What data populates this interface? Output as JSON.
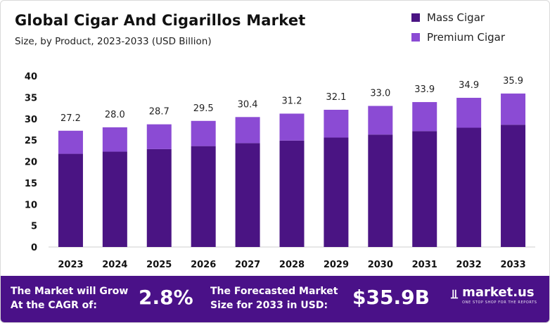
{
  "header": {
    "title": "Global Cigar And Cigarillos Market",
    "subtitle": "Size, by Product, 2023-2033 (USD Billion)"
  },
  "legend": [
    {
      "label": "Mass Cigar",
      "color": "#4a1483"
    },
    {
      "label": "Premium Cigar",
      "color": "#8b4bd4"
    }
  ],
  "chart_data": {
    "type": "bar",
    "stacked": true,
    "title": "Global Cigar And Cigarillos Market",
    "subtitle": "Size, by Product, 2023-2033 (USD Billion)",
    "categories": [
      "2023",
      "2024",
      "2025",
      "2026",
      "2027",
      "2028",
      "2029",
      "2030",
      "2031",
      "2032",
      "2033"
    ],
    "series": [
      {
        "name": "Mass Cigar",
        "color": "#4a1483",
        "values": [
          21.8,
          22.3,
          22.9,
          23.6,
          24.3,
          24.9,
          25.6,
          26.3,
          27.1,
          27.9,
          28.6
        ]
      },
      {
        "name": "Premium Cigar",
        "color": "#8b4bd4",
        "values": [
          5.4,
          5.7,
          5.8,
          5.9,
          6.1,
          6.3,
          6.5,
          6.7,
          6.8,
          7.0,
          7.3
        ]
      }
    ],
    "totals": [
      "27.2",
      "28.0",
      "28.7",
      "29.5",
      "30.4",
      "31.2",
      "32.1",
      "33.0",
      "33.9",
      "34.9",
      "35.9"
    ],
    "ylim": [
      0,
      40
    ],
    "yticks": [
      0,
      5,
      10,
      15,
      20,
      25,
      30,
      35,
      40
    ],
    "xlabel": "",
    "ylabel": "",
    "grid": false,
    "legend_position": "top-right"
  },
  "footer": {
    "cagr_label_line1": "The Market will Grow",
    "cagr_label_line2": "At the CAGR of:",
    "cagr_value": "2.8%",
    "forecast_label_line1": "The Forecasted Market",
    "forecast_label_line2": "Size for 2033 in USD:",
    "forecast_value": "$35.9B",
    "logo_name": "market.us",
    "logo_tagline": "ONE STOP SHOP FOR THE REPORTS"
  }
}
